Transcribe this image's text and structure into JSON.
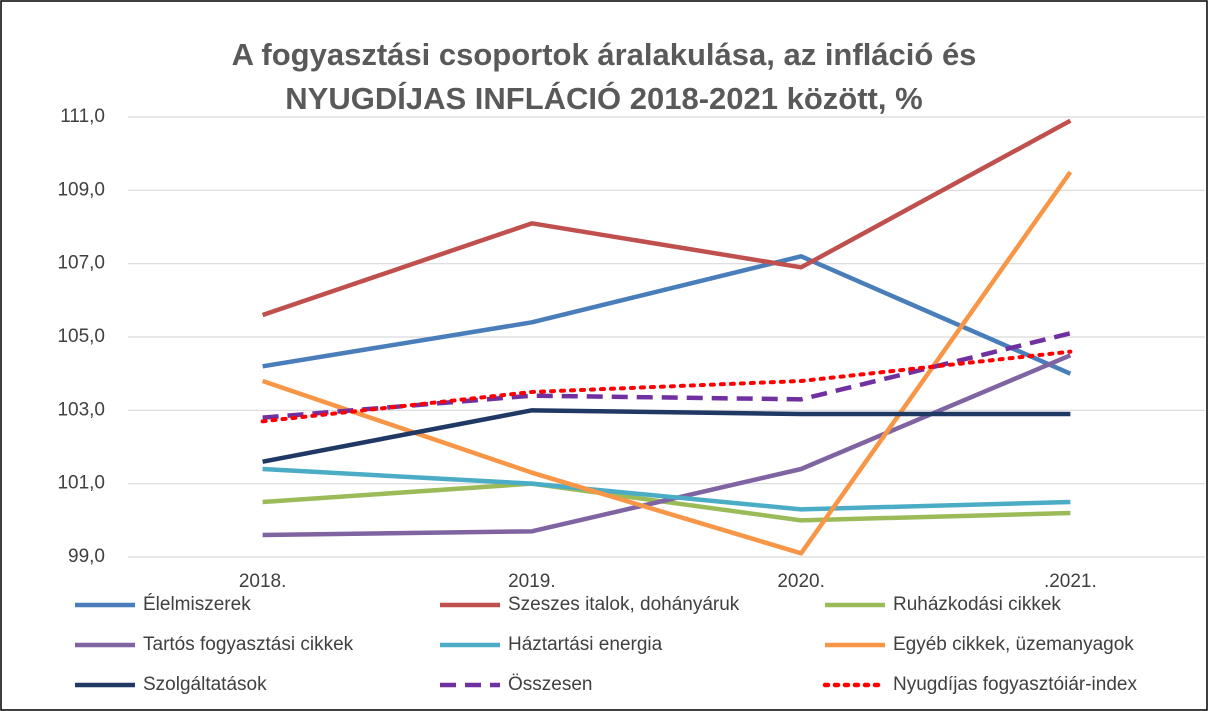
{
  "chart_data": {
    "type": "line",
    "title": [
      "A fogyasztási csoportok áralakulása, az infláció és",
      "NYUGDÍJAS INFLÁCIÓ  2018-2021 között, %"
    ],
    "categories": [
      "2018.",
      "2019.",
      "2020.",
      ".2021."
    ],
    "ylim": [
      99,
      111
    ],
    "yticks": [
      {
        "value": 99,
        "label": "99,0"
      },
      {
        "value": 101,
        "label": "101,0"
      },
      {
        "value": 103,
        "label": "103,0"
      },
      {
        "value": 105,
        "label": "105,0"
      },
      {
        "value": 107,
        "label": "107,0"
      },
      {
        "value": 109,
        "label": "109,0"
      },
      {
        "value": 111,
        "label": "111,0"
      }
    ],
    "grid": true,
    "legend": "bottom",
    "series": [
      {
        "name": "Élelmiszerek",
        "color": "#4a7ebb",
        "dash": "solid",
        "values": [
          104.2,
          105.4,
          107.2,
          104.0
        ]
      },
      {
        "name": "Szeszes italok, dohányáruk",
        "color": "#c0504d",
        "dash": "solid",
        "values": [
          105.6,
          108.1,
          106.9,
          110.9
        ]
      },
      {
        "name": "Ruházkodási cikkek",
        "color": "#9bbb59",
        "dash": "solid",
        "values": [
          100.5,
          101.0,
          100.0,
          100.2
        ]
      },
      {
        "name": "Tartós fogyasztási cikkek",
        "color": "#8064a2",
        "dash": "solid",
        "values": [
          99.6,
          99.7,
          101.4,
          104.5
        ]
      },
      {
        "name": "Háztartási energia",
        "color": "#4bacc6",
        "dash": "solid",
        "values": [
          101.4,
          101.0,
          100.3,
          100.5
        ]
      },
      {
        "name": "Egyéb cikkek, üzemanyagok",
        "color": "#f79646",
        "dash": "solid",
        "values": [
          103.8,
          101.3,
          99.1,
          109.5
        ]
      },
      {
        "name": "Szolgáltatások",
        "color": "#1f3864",
        "dash": "solid",
        "values": [
          101.6,
          103.0,
          102.9,
          102.9
        ]
      },
      {
        "name": "Összesen",
        "color": "#7030a0",
        "dash": "dashed",
        "values": [
          102.8,
          103.4,
          103.3,
          105.1
        ]
      },
      {
        "name": "Nyugdíjas fogyasztóiár-index",
        "color": "#ff0000",
        "dash": "dotted",
        "values": [
          102.7,
          103.5,
          103.8,
          104.6
        ]
      }
    ]
  }
}
